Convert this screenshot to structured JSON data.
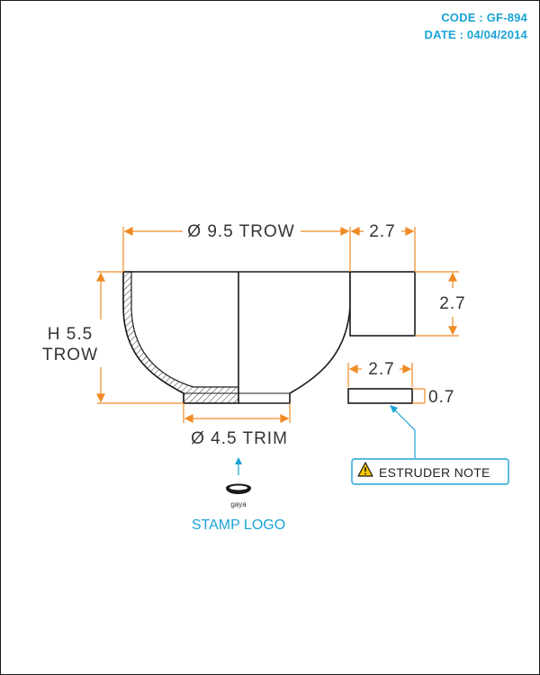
{
  "header": {
    "code": "CODE : GF-894",
    "date": "DATE : 04/04/2014"
  },
  "dimensions": {
    "top_diameter": "Ø 9.5 TROW",
    "handle_width": "2.7",
    "handle_height": "2.7",
    "height_line1": "H 5.5",
    "height_line2": "TROW",
    "bottom_diameter": "Ø 4.5 TRIM",
    "extruder_width": "2.7",
    "extruder_thickness": "0.7"
  },
  "notes": {
    "extruder_note": "ESTRUDER NOTE",
    "stamp_brand": "gaya",
    "stamp_label": "STAMP LOGO"
  },
  "colors": {
    "dimension": "#f08a24",
    "accent": "#1aa3d6",
    "outline": "#1a1a1a",
    "warning": "#f5c400"
  }
}
